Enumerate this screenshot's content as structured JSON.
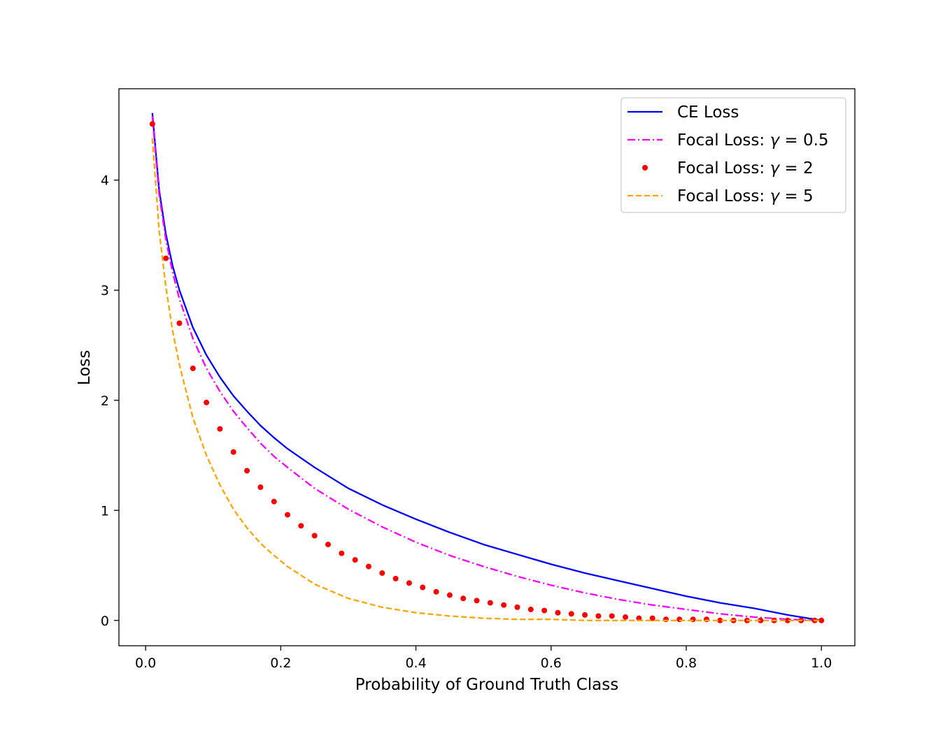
{
  "chart_data": {
    "type": "line",
    "title": "",
    "xlabel": "Probability of Ground Truth Class",
    "ylabel": "Loss",
    "xlim": [
      -0.0395,
      1.0495
    ],
    "ylim": [
      -0.23,
      4.83
    ],
    "x_ticks": [
      {
        "value": 0.0,
        "label": "0.0"
      },
      {
        "value": 0.2,
        "label": "0.2"
      },
      {
        "value": 0.4,
        "label": "0.4"
      },
      {
        "value": 0.6,
        "label": "0.6"
      },
      {
        "value": 0.8,
        "label": "0.8"
      },
      {
        "value": 1.0,
        "label": "1.0"
      }
    ],
    "y_ticks": [
      {
        "value": 0,
        "label": "0"
      },
      {
        "value": 1,
        "label": "1"
      },
      {
        "value": 2,
        "label": "2"
      },
      {
        "value": 3,
        "label": "3"
      },
      {
        "value": 4,
        "label": "4"
      }
    ],
    "grid": false,
    "legend_position": "top-right",
    "series": [
      {
        "name": "CE Loss",
        "style": "solid",
        "color": "#0000ff",
        "x": [
          0.01,
          0.02,
          0.03,
          0.04,
          0.05,
          0.07,
          0.09,
          0.11,
          0.13,
          0.15,
          0.17,
          0.19,
          0.21,
          0.25,
          0.3,
          0.35,
          0.4,
          0.45,
          0.5,
          0.55,
          0.6,
          0.65,
          0.7,
          0.75,
          0.8,
          0.85,
          0.9,
          0.95,
          1.0
        ],
        "y": [
          4.61,
          3.91,
          3.51,
          3.22,
          3.0,
          2.66,
          2.41,
          2.21,
          2.04,
          1.9,
          1.77,
          1.66,
          1.56,
          1.39,
          1.2,
          1.05,
          0.92,
          0.8,
          0.69,
          0.6,
          0.51,
          0.43,
          0.36,
          0.29,
          0.22,
          0.16,
          0.11,
          0.05,
          0.0
        ]
      },
      {
        "name": "Focal Loss: γ = 0.5",
        "style": "dashdot",
        "color": "#ff00ff",
        "x": [
          0.01,
          0.02,
          0.03,
          0.04,
          0.05,
          0.07,
          0.09,
          0.11,
          0.13,
          0.15,
          0.17,
          0.19,
          0.21,
          0.25,
          0.3,
          0.35,
          0.4,
          0.45,
          0.5,
          0.55,
          0.6,
          0.65,
          0.7,
          0.75,
          0.8,
          0.85,
          0.9,
          0.95,
          1.0
        ],
        "y": [
          4.58,
          3.87,
          3.46,
          3.16,
          2.92,
          2.56,
          2.29,
          2.08,
          1.9,
          1.75,
          1.61,
          1.49,
          1.39,
          1.2,
          1.01,
          0.85,
          0.71,
          0.59,
          0.49,
          0.4,
          0.32,
          0.25,
          0.19,
          0.14,
          0.1,
          0.06,
          0.03,
          0.01,
          0.0
        ]
      },
      {
        "name": "Focal Loss: γ = 2",
        "style": "dotted",
        "color": "#ff0000",
        "x": [
          0.01,
          0.03,
          0.05,
          0.07,
          0.09,
          0.11,
          0.13,
          0.15,
          0.17,
          0.19,
          0.21,
          0.23,
          0.25,
          0.27,
          0.29,
          0.31,
          0.33,
          0.35,
          0.37,
          0.39,
          0.41,
          0.43,
          0.45,
          0.47,
          0.49,
          0.51,
          0.53,
          0.55,
          0.57,
          0.59,
          0.61,
          0.63,
          0.65,
          0.67,
          0.69,
          0.71,
          0.73,
          0.75,
          0.77,
          0.79,
          0.81,
          0.83,
          0.85,
          0.87,
          0.89,
          0.91,
          0.93,
          0.95,
          0.97,
          0.99,
          1.0
        ],
        "y": [
          4.51,
          3.29,
          2.7,
          2.29,
          1.98,
          1.74,
          1.53,
          1.36,
          1.21,
          1.08,
          0.96,
          0.86,
          0.77,
          0.69,
          0.61,
          0.55,
          0.49,
          0.43,
          0.38,
          0.34,
          0.3,
          0.26,
          0.23,
          0.2,
          0.18,
          0.16,
          0.14,
          0.12,
          0.1,
          0.09,
          0.07,
          0.06,
          0.05,
          0.04,
          0.04,
          0.03,
          0.02,
          0.02,
          0.01,
          0.01,
          0.01,
          0.01,
          0.0,
          0.0,
          0.0,
          0.0,
          0.0,
          0.0,
          0.0,
          0.0,
          0.0
        ]
      },
      {
        "name": "Focal Loss: γ = 5",
        "style": "dashed",
        "color": "#ffa500",
        "x": [
          0.01,
          0.02,
          0.03,
          0.04,
          0.05,
          0.07,
          0.09,
          0.11,
          0.13,
          0.15,
          0.17,
          0.19,
          0.21,
          0.25,
          0.3,
          0.35,
          0.4,
          0.45,
          0.5,
          0.55,
          0.6,
          0.65,
          0.7,
          0.75,
          0.8,
          0.85,
          0.9,
          0.95,
          1.0
        ],
        "y": [
          4.38,
          3.54,
          3.03,
          2.63,
          2.32,
          1.84,
          1.5,
          1.23,
          1.01,
          0.84,
          0.7,
          0.59,
          0.49,
          0.33,
          0.2,
          0.12,
          0.07,
          0.04,
          0.02,
          0.01,
          0.01,
          0.0,
          0.0,
          0.0,
          0.0,
          0.0,
          0.0,
          0.0,
          0.0
        ]
      }
    ]
  },
  "legend": {
    "items": [
      {
        "prefix": "CE Loss",
        "symbol": "",
        "value": ""
      },
      {
        "prefix": "Focal Loss: ",
        "symbol": "γ",
        "value": " = 0.5"
      },
      {
        "prefix": "Focal Loss: ",
        "symbol": "γ",
        "value": " = 2"
      },
      {
        "prefix": "Focal Loss: ",
        "symbol": "γ",
        "value": " = 5"
      }
    ]
  }
}
